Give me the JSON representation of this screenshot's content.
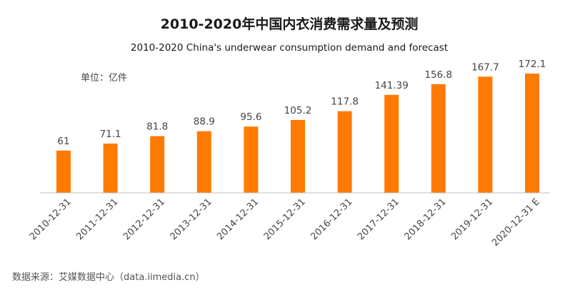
{
  "chart_data": {
    "type": "bar",
    "title": "2010-2020年中国内衣消费需求量及预测",
    "subtitle": "2010-2020 China's underwear consumption demand and forecast",
    "unit_label": "单位：亿件",
    "source": "数据来源：艾媒数据中心（data.iimedia.cn）",
    "categories": [
      "2010-12-31",
      "2011-12-31",
      "2012-12-31",
      "2013-12-31",
      "2014-12-31",
      "2015-12-31",
      "2016-12-31",
      "2017-12-31",
      "2018-12-31",
      "2019-12-31",
      "2020-12-31 E"
    ],
    "values": [
      61,
      71.1,
      81.8,
      88.9,
      95.6,
      105.2,
      117.8,
      141.39,
      156.8,
      167.7,
      172.1
    ],
    "value_labels": [
      "61",
      "71.1",
      "81.8",
      "88.9",
      "95.6",
      "105.2",
      "117.8",
      "141.39",
      "156.8",
      "167.7",
      "172.1"
    ],
    "ylim": [
      0,
      172.1
    ],
    "grid": false,
    "legend": "none",
    "bar_color": "#FF7A00",
    "axis_color": "#BFBFBF"
  }
}
